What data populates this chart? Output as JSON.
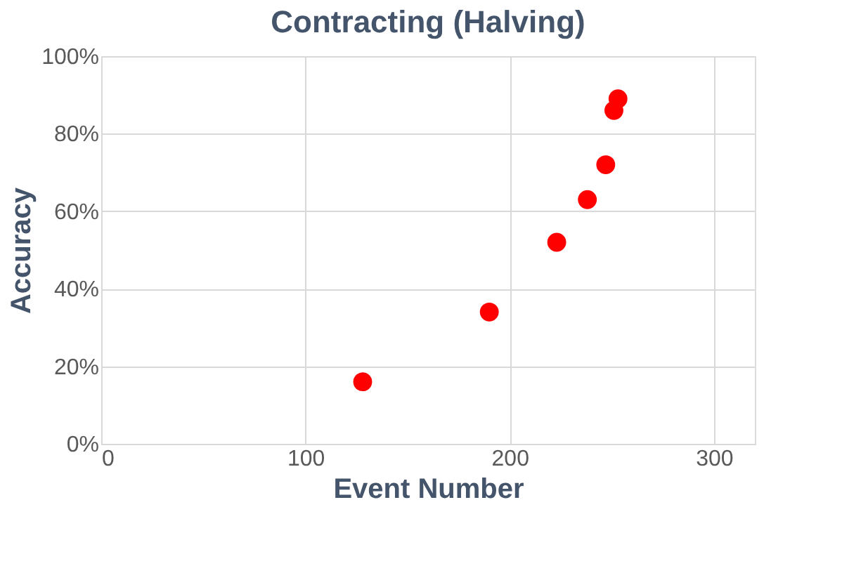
{
  "chart_data": {
    "type": "scatter",
    "title": "Contracting (Halving)",
    "xlabel": "Event Number",
    "ylabel": "Accuracy",
    "x": [
      128,
      190,
      223,
      238,
      247,
      251,
      253
    ],
    "series": [
      {
        "color": "#ff0000",
        "values": [
          16,
          34,
          52,
          63,
          72,
          86,
          89
        ]
      }
    ],
    "xlim": [
      0,
      320
    ],
    "xticks": [
      0,
      100,
      200,
      300
    ],
    "ylim": [
      0,
      100
    ],
    "yticks": [
      {
        "value": 0,
        "label": "0%"
      },
      {
        "value": 20,
        "label": "20%"
      },
      {
        "value": 40,
        "label": "40%"
      },
      {
        "value": 60,
        "label": "60%"
      },
      {
        "value": 80,
        "label": "80%"
      },
      {
        "value": 100,
        "label": "100%"
      }
    ],
    "grid": true,
    "marker": "circle"
  }
}
